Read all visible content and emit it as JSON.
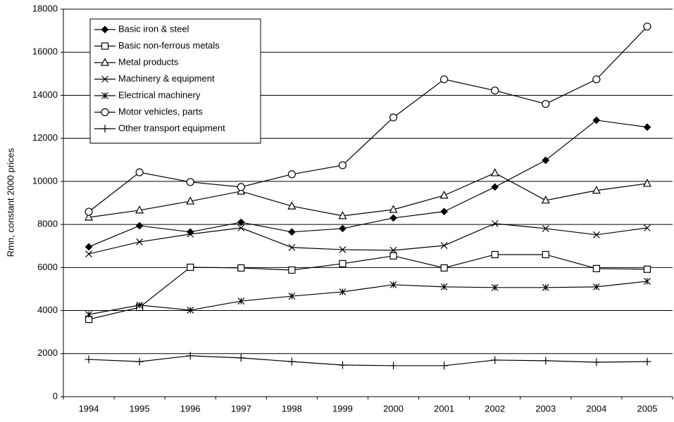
{
  "chart_data": {
    "type": "line",
    "y_label": "Rmn, constant 2000 prices",
    "categories": [
      "1994",
      "1995",
      "1996",
      "1997",
      "1998",
      "1999",
      "2000",
      "2001",
      "2002",
      "2003",
      "2004",
      "2005"
    ],
    "ylim": [
      0,
      18000
    ],
    "yticks": [
      0,
      2000,
      4000,
      6000,
      8000,
      10000,
      12000,
      14000,
      16000,
      18000
    ],
    "grid": true,
    "legend": "top-left",
    "series": [
      {
        "name": "Basic iron & steel",
        "color": "#000000",
        "marker": "diamond-filled",
        "values": [
          6960,
          7940,
          7650,
          8100,
          7650,
          7810,
          8300,
          8600,
          9740,
          10980,
          12840,
          12520
        ]
      },
      {
        "name": "Basic non-ferrous metals",
        "color": "#000000",
        "marker": "square",
        "values": [
          3590,
          4150,
          6010,
          5980,
          5880,
          6180,
          6540,
          5980,
          6600,
          6600,
          5950,
          5920
        ]
      },
      {
        "name": "Metal products",
        "color": "#000000",
        "marker": "triangle",
        "values": [
          8330,
          8660,
          9080,
          9540,
          8850,
          8400,
          8690,
          9350,
          10390,
          9120,
          9580,
          9900
        ]
      },
      {
        "name": "Machinery & equipment",
        "color": "#000000",
        "marker": "x",
        "values": [
          6630,
          7190,
          7550,
          7840,
          6930,
          6830,
          6800,
          7020,
          8040,
          7810,
          7520,
          7840
        ]
      },
      {
        "name": "Electrical machinery",
        "color": "#000000",
        "marker": "asterisk",
        "values": [
          3820,
          4250,
          4020,
          4440,
          4670,
          4870,
          5200,
          5100,
          5070,
          5070,
          5100,
          5360
        ]
      },
      {
        "name": "Motor vehicles, parts",
        "color": "#000000",
        "marker": "circle",
        "values": [
          8590,
          10420,
          9970,
          9740,
          10330,
          10750,
          12970,
          14740,
          14220,
          13600,
          14740,
          17190
        ]
      },
      {
        "name": "Other transport equipment",
        "color": "#000000",
        "marker": "plus",
        "values": [
          1730,
          1630,
          1900,
          1800,
          1630,
          1470,
          1440,
          1440,
          1700,
          1670,
          1600,
          1630
        ]
      }
    ]
  }
}
